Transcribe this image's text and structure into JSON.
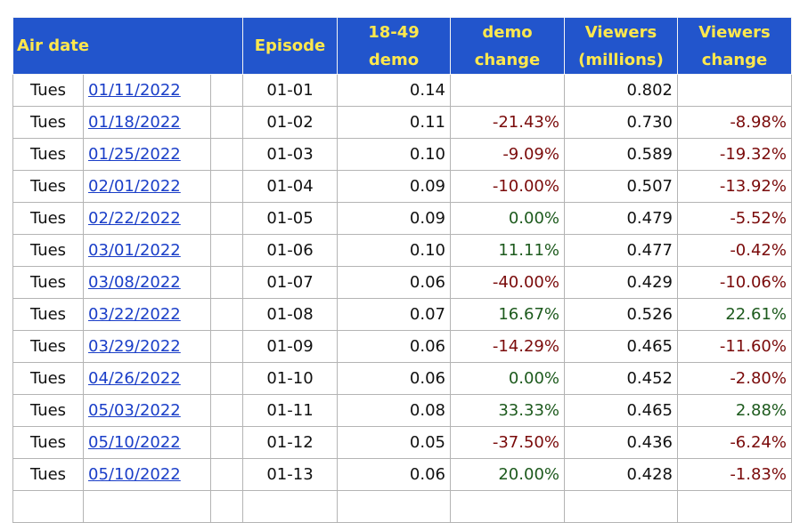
{
  "headers": {
    "air_date": "Air date",
    "episode": "Episode",
    "demo_1": "18-49",
    "demo_2": "demo",
    "dchange_1": "demo",
    "dchange_2": "change",
    "viewers_1": "Viewers",
    "viewers_2": "(millions)",
    "vchange_1": "Viewers",
    "vchange_2": "change"
  },
  "colors": {
    "header_bg": "#2255cc",
    "header_text": "#ffe84d",
    "negative": "#7a0a0a",
    "positive": "#1d5a1d",
    "link": "#1a3ec8"
  },
  "rows": [
    {
      "day": "Tues",
      "date": "01/11/2022",
      "episode": "01-01",
      "demo": "0.14",
      "demo_change": "",
      "viewers": "0.802",
      "viewers_change": ""
    },
    {
      "day": "Tues",
      "date": "01/18/2022",
      "episode": "01-02",
      "demo": "0.11",
      "demo_change": "-21.43%",
      "viewers": "0.730",
      "viewers_change": "-8.98%"
    },
    {
      "day": "Tues",
      "date": "01/25/2022",
      "episode": "01-03",
      "demo": "0.10",
      "demo_change": "-9.09%",
      "viewers": "0.589",
      "viewers_change": "-19.32%"
    },
    {
      "day": "Tues",
      "date": "02/01/2022",
      "episode": "01-04",
      "demo": "0.09",
      "demo_change": "-10.00%",
      "viewers": "0.507",
      "viewers_change": "-13.92%"
    },
    {
      "day": "Tues",
      "date": "02/22/2022",
      "episode": "01-05",
      "demo": "0.09",
      "demo_change": "0.00%",
      "viewers": "0.479",
      "viewers_change": "-5.52%"
    },
    {
      "day": "Tues",
      "date": "03/01/2022",
      "episode": "01-06",
      "demo": "0.10",
      "demo_change": "11.11%",
      "viewers": "0.477",
      "viewers_change": "-0.42%"
    },
    {
      "day": "Tues",
      "date": "03/08/2022",
      "episode": "01-07",
      "demo": "0.06",
      "demo_change": "-40.00%",
      "viewers": "0.429",
      "viewers_change": "-10.06%"
    },
    {
      "day": "Tues",
      "date": "03/22/2022",
      "episode": "01-08",
      "demo": "0.07",
      "demo_change": "16.67%",
      "viewers": "0.526",
      "viewers_change": "22.61%"
    },
    {
      "day": "Tues",
      "date": "03/29/2022",
      "episode": "01-09",
      "demo": "0.06",
      "demo_change": "-14.29%",
      "viewers": "0.465",
      "viewers_change": "-11.60%"
    },
    {
      "day": "Tues",
      "date": "04/26/2022",
      "episode": "01-10",
      "demo": "0.06",
      "demo_change": "0.00%",
      "viewers": "0.452",
      "viewers_change": "-2.80%"
    },
    {
      "day": "Tues",
      "date": "05/03/2022",
      "episode": "01-11",
      "demo": "0.08",
      "demo_change": "33.33%",
      "viewers": "0.465",
      "viewers_change": "2.88%"
    },
    {
      "day": "Tues",
      "date": "05/10/2022",
      "episode": "01-12",
      "demo": "0.05",
      "demo_change": "-37.50%",
      "viewers": "0.436",
      "viewers_change": "-6.24%"
    },
    {
      "day": "Tues",
      "date": "05/10/2022",
      "episode": "01-13",
      "demo": "0.06",
      "demo_change": "20.00%",
      "viewers": "0.428",
      "viewers_change": "-1.83%"
    }
  ]
}
